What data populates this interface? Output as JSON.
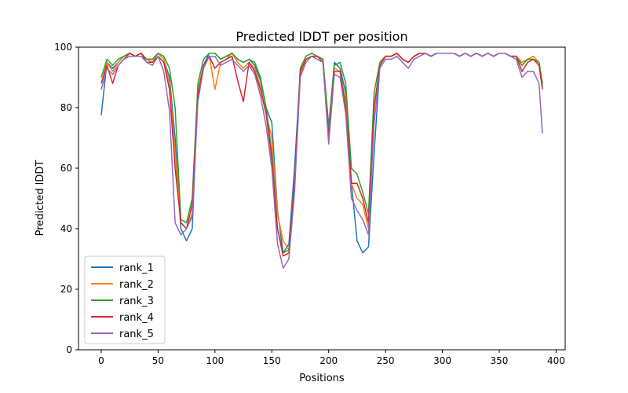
{
  "chart_data": {
    "type": "line",
    "title": "Predicted lDDT per position",
    "xlabel": "Positions",
    "ylabel": "Predicted lDDT",
    "xlim": [
      -20,
      408
    ],
    "ylim": [
      0,
      100
    ],
    "x_ticks": [
      0,
      50,
      100,
      150,
      200,
      250,
      300,
      350,
      400
    ],
    "y_ticks": [
      0,
      20,
      40,
      60,
      80,
      100
    ],
    "legend_location": "lower-left",
    "x": [
      0,
      5,
      10,
      15,
      20,
      25,
      30,
      35,
      40,
      45,
      50,
      55,
      60,
      65,
      70,
      75,
      80,
      85,
      90,
      95,
      100,
      105,
      110,
      115,
      120,
      125,
      130,
      135,
      140,
      145,
      150,
      155,
      160,
      165,
      170,
      175,
      180,
      185,
      190,
      195,
      200,
      205,
      210,
      215,
      220,
      225,
      230,
      235,
      240,
      245,
      250,
      255,
      260,
      265,
      270,
      275,
      280,
      285,
      290,
      295,
      300,
      305,
      310,
      315,
      320,
      325,
      330,
      335,
      340,
      345,
      350,
      355,
      360,
      365,
      370,
      375,
      380,
      385,
      388
    ],
    "series": [
      {
        "name": "rank_1",
        "color": "#1f77b4",
        "values": [
          77.5,
          95,
          93,
          95,
          97,
          98,
          97,
          98,
          96,
          96,
          98,
          96,
          90,
          70,
          40,
          36,
          40,
          85,
          94,
          98,
          98,
          96,
          97,
          98,
          96,
          95,
          96,
          94,
          89,
          80,
          75,
          46,
          32,
          35,
          60,
          92,
          96,
          97,
          97,
          96,
          72,
          95,
          93,
          85,
          55,
          36,
          32,
          34,
          65,
          94,
          97,
          97,
          98,
          96,
          95,
          97,
          98,
          98,
          97,
          98,
          98,
          98,
          98,
          97,
          98,
          97,
          98,
          97,
          98,
          97,
          98,
          98,
          97,
          97,
          94,
          96,
          96,
          95,
          87
        ]
      },
      {
        "name": "rank_2",
        "color": "#ff7f0e",
        "values": [
          88,
          95,
          92,
          95,
          97,
          98,
          97,
          98,
          96,
          95,
          98,
          96,
          88,
          65,
          42,
          40,
          45,
          86,
          94,
          97,
          86,
          95,
          96,
          98,
          95,
          93,
          95,
          93,
          87,
          78,
          70,
          45,
          36,
          33,
          55,
          91,
          96,
          97,
          97,
          96,
          74,
          93,
          92,
          82,
          55,
          50,
          48,
          40,
          80,
          94,
          97,
          97,
          98,
          96,
          95,
          97,
          98,
          98,
          97,
          98,
          98,
          98,
          98,
          97,
          98,
          97,
          98,
          97,
          98,
          97,
          98,
          98,
          97,
          97,
          95,
          96,
          97,
          95,
          88
        ]
      },
      {
        "name": "rank_3",
        "color": "#2ca02c",
        "values": [
          90,
          96,
          94,
          96,
          97,
          98,
          97,
          98,
          96,
          96,
          98,
          97,
          93,
          80,
          43,
          42,
          50,
          88,
          96,
          98,
          98,
          96,
          97,
          98,
          96,
          95,
          96,
          95,
          90,
          80,
          65,
          40,
          32,
          33,
          55,
          93,
          97,
          98,
          97,
          96,
          74,
          94,
          95,
          88,
          60,
          58,
          52,
          45,
          85,
          95,
          97,
          97,
          98,
          96,
          95,
          97,
          98,
          98,
          97,
          98,
          98,
          98,
          98,
          97,
          98,
          97,
          98,
          97,
          98,
          97,
          98,
          98,
          97,
          97,
          94,
          96,
          96,
          95,
          88
        ]
      },
      {
        "name": "rank_4",
        "color": "#d62728",
        "values": [
          88,
          94,
          88,
          94,
          96,
          98,
          97,
          98,
          95,
          95,
          97,
          95,
          86,
          60,
          42,
          40,
          48,
          84,
          94,
          97,
          93,
          95,
          96,
          97,
          89,
          82,
          95,
          92,
          86,
          78,
          63,
          40,
          31,
          32,
          55,
          92,
          96,
          97,
          97,
          95,
          70,
          92,
          92,
          80,
          55,
          55,
          50,
          42,
          80,
          94,
          97,
          97,
          98,
          96,
          95,
          97,
          98,
          98,
          97,
          98,
          98,
          98,
          98,
          97,
          98,
          97,
          98,
          97,
          98,
          97,
          98,
          98,
          97,
          97,
          92,
          95,
          96,
          94,
          86
        ]
      },
      {
        "name": "rank_5",
        "color": "#9467bd",
        "values": [
          86,
          93,
          91,
          94,
          96,
          97,
          97,
          97,
          95,
          94,
          97,
          92,
          79,
          42,
          38,
          40,
          44,
          82,
          93,
          97,
          97,
          94,
          95,
          96,
          94,
          92,
          94,
          91,
          84,
          74,
          60,
          35,
          27,
          30,
          52,
          90,
          95,
          97,
          96,
          95,
          68,
          91,
          90,
          78,
          50,
          46,
          43,
          38,
          75,
          93,
          96,
          96,
          97,
          95,
          93,
          96,
          97,
          98,
          97,
          98,
          98,
          98,
          98,
          97,
          98,
          97,
          98,
          97,
          98,
          97,
          98,
          98,
          97,
          96,
          90,
          92,
          92,
          88,
          71.5
        ]
      }
    ]
  }
}
